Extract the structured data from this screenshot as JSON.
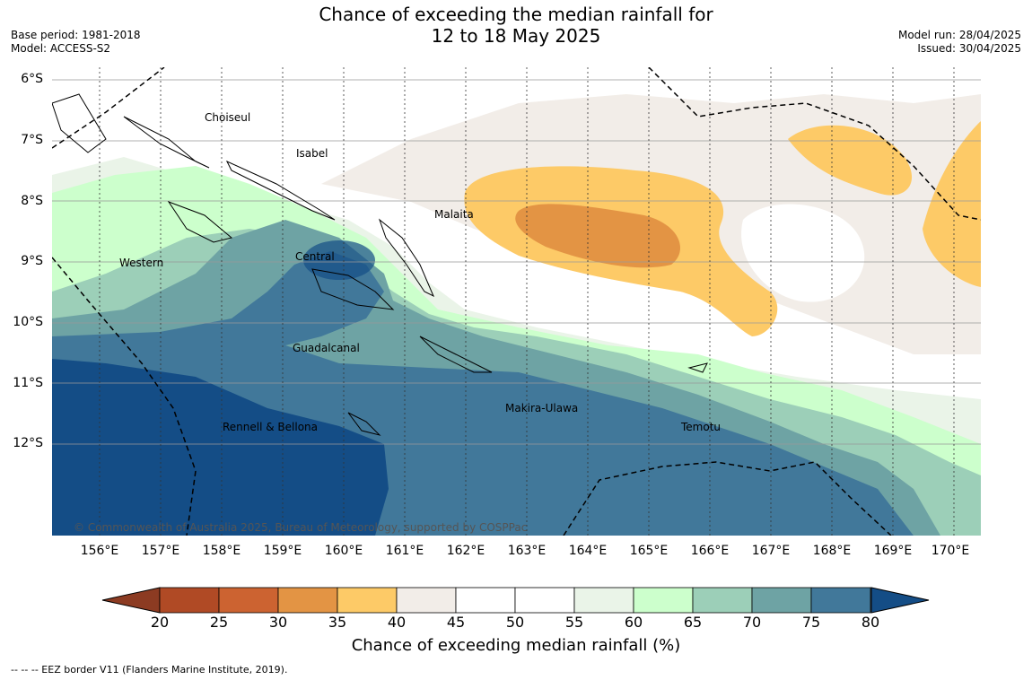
{
  "header": {
    "title_line1": "Chance of exceeding the median rainfall for",
    "title_line2": "12 to 18 May 2025",
    "base_period": "Base period: 1981-2018",
    "model": "Model: ACCESS-S2",
    "model_run": "Model run: 28/04/2025",
    "issued": "Issued: 30/04/2025"
  },
  "map": {
    "lat_labels": [
      "6°S",
      "7°S",
      "8°S",
      "9°S",
      "10°S",
      "11°S",
      "12°S"
    ],
    "lon_labels": [
      "156°E",
      "157°E",
      "158°E",
      "159°E",
      "160°E",
      "161°E",
      "162°E",
      "163°E",
      "164°E",
      "165°E",
      "166°E",
      "167°E",
      "168°E",
      "169°E",
      "170°E"
    ],
    "regions": {
      "choiseul": "Choiseul",
      "isabel": "Isabel",
      "malaita": "Malaita",
      "western": "Western",
      "central": "Central",
      "guadalcanal": "Guadalcanal",
      "makira": "Makira-Ulawa",
      "rennell": "Rennell & Bellona",
      "temotu": "Temotu"
    },
    "copyright": "© Commonwealth of Australia 2025, Bureau of Meteorology, supported by COSPPac"
  },
  "colorbar": {
    "ticks": [
      "20",
      "25",
      "30",
      "35",
      "40",
      "45",
      "50",
      "55",
      "60",
      "65",
      "70",
      "75",
      "80"
    ],
    "colors": [
      "#b04a25",
      "#cc6331",
      "#e39444",
      "#fdca67",
      "#f2ede8",
      "#ffffff",
      "#ffffff",
      "#eaf4e8",
      "#ccffcc",
      "#9ccfb8",
      "#6ea3a4",
      "#41789a"
    ],
    "under_color": "#8c3b22",
    "over_color": "#144d86",
    "label": "Chance of exceeding median rainfall (%)"
  },
  "footnote": "--  --  -- EEZ border V11 (Flanders Marine Institute, 2019)."
}
